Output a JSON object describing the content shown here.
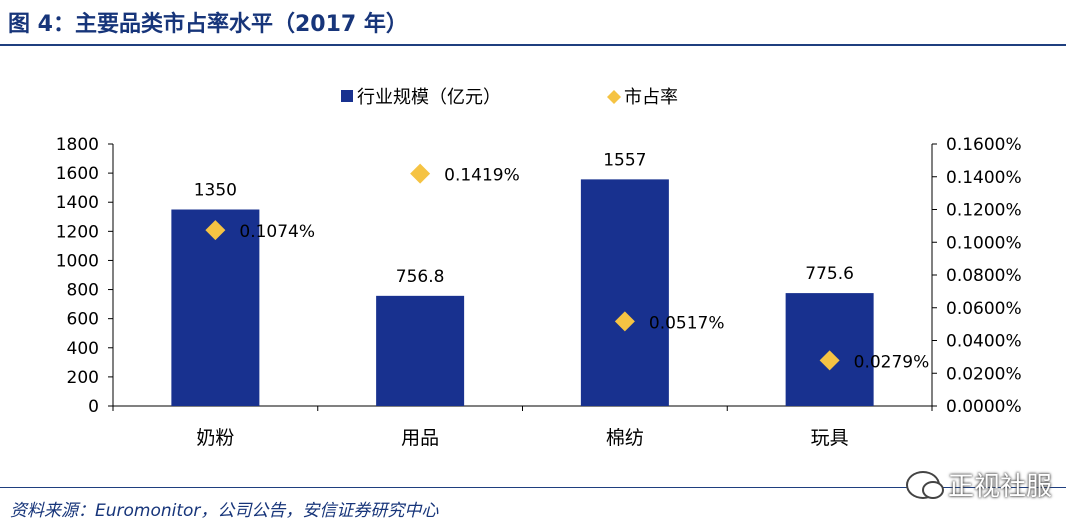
{
  "figure_title": "图 4：主要品类市占率水平（2017 年）",
  "source": "资料来源：Euromonitor，公司公告，安信证券研究中心",
  "watermark": "正视社服",
  "colors": {
    "bar": "#18318f",
    "marker": "#f5c343",
    "title": "#17357a"
  },
  "chart_data": {
    "type": "bar",
    "categories": [
      "奶粉",
      "用品",
      "棉纺",
      "玩具"
    ],
    "series": [
      {
        "name": "行业规模（亿元）",
        "type": "bar",
        "axis": "left",
        "values": [
          1350,
          756.8,
          1557,
          775.6
        ],
        "labels": [
          "1350",
          "756.8",
          "1557",
          "775.6"
        ]
      },
      {
        "name": "市占率",
        "type": "scatter",
        "axis": "right",
        "values": [
          0.1074,
          0.1419,
          0.0517,
          0.0279
        ],
        "labels": [
          "0.1074%",
          "0.1419%",
          "0.0517%",
          "0.0279%"
        ]
      }
    ],
    "y_left": {
      "ylim": [
        0,
        1800
      ],
      "ticks": [
        "0",
        "200",
        "400",
        "600",
        "800",
        "1000",
        "1200",
        "1400",
        "1600",
        "1800"
      ]
    },
    "y_right": {
      "ylim": [
        0,
        0.16
      ],
      "ticks": [
        "0.0000%",
        "0.0200%",
        "0.0400%",
        "0.0600%",
        "0.0800%",
        "0.1000%",
        "0.1200%",
        "0.1400%",
        "0.1600%"
      ]
    },
    "legend_position": "top-center",
    "grid": false
  }
}
